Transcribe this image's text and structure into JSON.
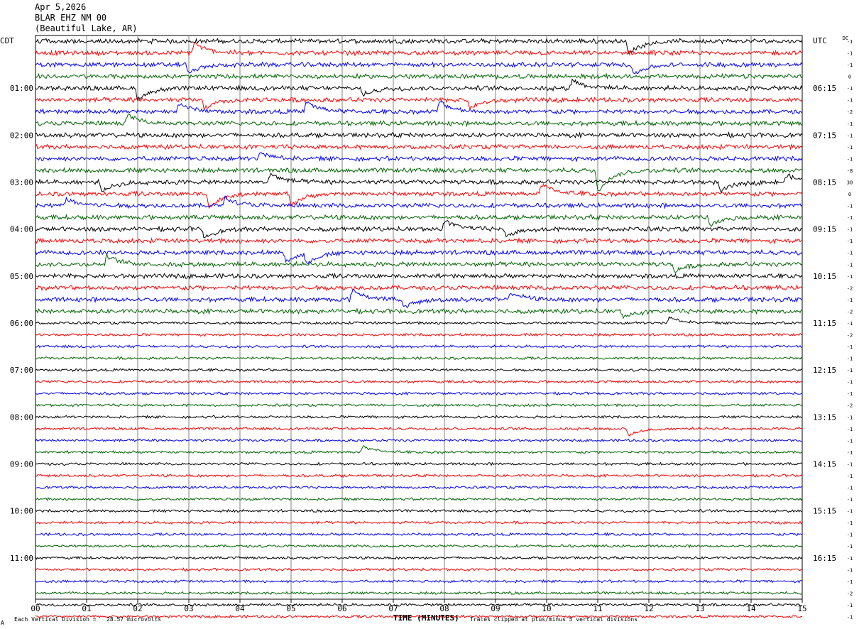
{
  "header": {
    "date": "Apr 5,2026",
    "station": "BLAR EHZ NM 00",
    "location": "(Beautiful Lake, AR)"
  },
  "left_timezone": "CDT",
  "right_timezone": "UTC",
  "dc_label": "DC",
  "footer": {
    "scale": "Each Vertical Division =   28.57 microvolts",
    "clip_note": "Traces clipped at plus/minus 5 vertical divisions",
    "corner_mark": "A"
  },
  "colors": {
    "trace_cycle": [
      "#000000",
      "#ff0000",
      "#0000ff",
      "#006400"
    ],
    "gridline": "#808080",
    "background": "#ffffff"
  },
  "chart_data": {
    "type": "line",
    "title": "Apr 5,2026 BLAR EHZ NM 00 (Beautiful Lake, AR)",
    "xlabel": "TIME (MINUTES)",
    "x_ticks": [
      "00",
      "01",
      "02",
      "03",
      "04",
      "05",
      "06",
      "07",
      "08",
      "09",
      "10",
      "11",
      "12",
      "13",
      "14",
      "15"
    ],
    "xlim": [
      0,
      15
    ],
    "minutes_per_line": 15,
    "lines_per_hour": 4,
    "left_hour_labels": [
      "01:00",
      "02:00",
      "03:00",
      "04:00",
      "05:00",
      "06:00",
      "07:00",
      "08:00",
      "09:00",
      "10:00",
      "11:00"
    ],
    "right_hour_labels": [
      "06:15",
      "07:15",
      "08:15",
      "09:15",
      "10:15",
      "11:15",
      "12:15",
      "13:15",
      "14:15",
      "15:15",
      "16:15"
    ],
    "dc_offsets": [
      "-1",
      "-1",
      "-1",
      "0",
      "-1",
      "-1",
      "-2",
      "-1",
      "-1",
      "-1",
      "-1",
      "-8",
      "30",
      "0",
      "-1",
      "-1",
      "-1",
      "-1",
      "-1",
      "-1",
      "-1",
      "-2",
      "-1",
      "-2",
      "-1",
      "-2",
      "-1",
      "-1",
      "-1",
      "-1",
      "-1",
      "-2",
      "-1",
      "-1",
      "-1",
      "-1",
      "-1",
      "-1",
      "-1",
      "-1",
      "-1",
      "-1",
      "-1",
      "-1",
      "-1",
      "-1",
      "-1",
      "-2",
      "-1",
      "-1"
    ],
    "event_features": [
      {
        "line": 0,
        "minute": 11.6,
        "amp": -18
      },
      {
        "line": 1,
        "minute": 3.1,
        "amp": 14
      },
      {
        "line": 2,
        "minute": 3.0,
        "amp": -12
      },
      {
        "line": 2,
        "minute": 11.7,
        "amp": -14
      },
      {
        "line": 4,
        "minute": 2.0,
        "amp": -16
      },
      {
        "line": 4,
        "minute": 6.4,
        "amp": -10
      },
      {
        "line": 4,
        "minute": 10.5,
        "amp": 12
      },
      {
        "line": 5,
        "minute": 3.3,
        "amp": -12
      },
      {
        "line": 5,
        "minute": 8.5,
        "amp": -12
      },
      {
        "line": 6,
        "minute": 2.8,
        "amp": 12
      },
      {
        "line": 6,
        "minute": 5.3,
        "amp": 14
      },
      {
        "line": 6,
        "minute": 7.9,
        "amp": 14
      },
      {
        "line": 7,
        "minute": 1.8,
        "amp": 12
      },
      {
        "line": 10,
        "minute": 4.4,
        "amp": 8
      },
      {
        "line": 11,
        "minute": 11.0,
        "amp": -30
      },
      {
        "line": 12,
        "minute": 1.3,
        "amp": -14
      },
      {
        "line": 12,
        "minute": 4.6,
        "amp": 12
      },
      {
        "line": 12,
        "minute": 13.4,
        "amp": -14
      },
      {
        "line": 12,
        "minute": 14.7,
        "amp": 10
      },
      {
        "line": 13,
        "minute": 3.4,
        "amp": -20
      },
      {
        "line": 13,
        "minute": 5.0,
        "amp": -16
      },
      {
        "line": 13,
        "minute": 9.9,
        "amp": 14
      },
      {
        "line": 14,
        "minute": 0.6,
        "amp": 10
      },
      {
        "line": 14,
        "minute": 3.7,
        "amp": 12
      },
      {
        "line": 15,
        "minute": 13.2,
        "amp": -12
      },
      {
        "line": 16,
        "minute": 3.3,
        "amp": -12
      },
      {
        "line": 16,
        "minute": 8.0,
        "amp": 12
      },
      {
        "line": 16,
        "minute": 9.2,
        "amp": -10
      },
      {
        "line": 18,
        "minute": 4.9,
        "amp": -12
      },
      {
        "line": 18,
        "minute": 5.3,
        "amp": -14
      },
      {
        "line": 19,
        "minute": 1.4,
        "amp": 12
      },
      {
        "line": 19,
        "minute": 12.5,
        "amp": -10
      },
      {
        "line": 22,
        "minute": 6.2,
        "amp": 14
      },
      {
        "line": 22,
        "minute": 7.2,
        "amp": -12
      },
      {
        "line": 22,
        "minute": 9.3,
        "amp": 10
      },
      {
        "line": 23,
        "minute": 11.5,
        "amp": -8
      },
      {
        "line": 24,
        "minute": 12.4,
        "amp": 8
      },
      {
        "line": 33,
        "minute": 11.6,
        "amp": -10
      },
      {
        "line": 35,
        "minute": 6.4,
        "amp": 8
      }
    ]
  }
}
